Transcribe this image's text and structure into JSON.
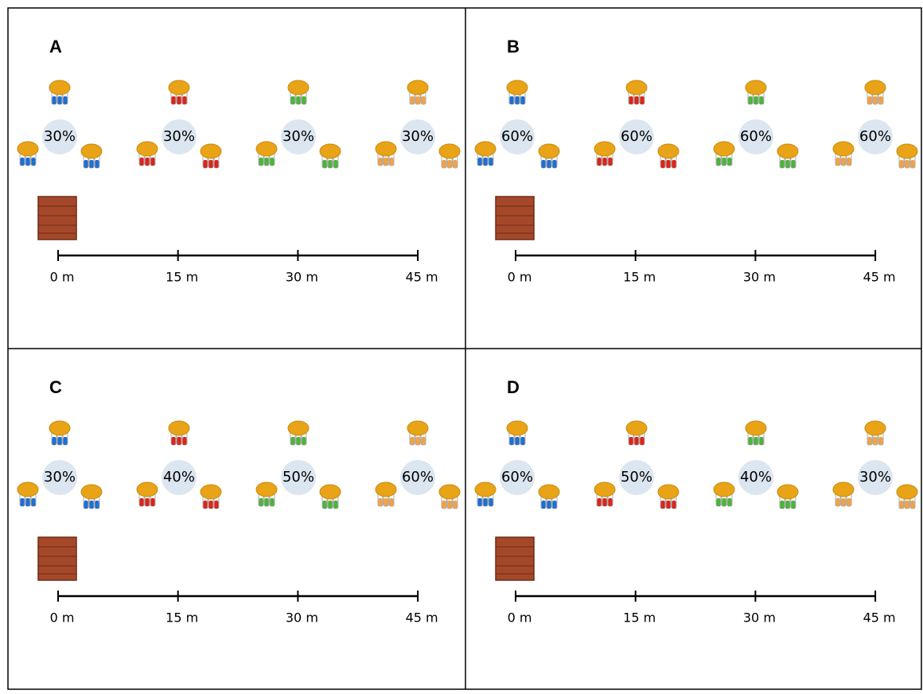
{
  "panels": [
    {
      "label": "A",
      "stations": [
        {
          "percent": "30%",
          "color": "#1f6fd1"
        },
        {
          "percent": "30%",
          "color": "#d9261c"
        },
        {
          "percent": "30%",
          "color": "#4db33d"
        },
        {
          "percent": "30%",
          "color": "#f0a24a"
        }
      ],
      "scale": [
        "0 m",
        "15 m",
        "30 m",
        "45 m"
      ]
    },
    {
      "label": "B",
      "stations": [
        {
          "percent": "60%",
          "color": "#1f6fd1"
        },
        {
          "percent": "60%",
          "color": "#d9261c"
        },
        {
          "percent": "60%",
          "color": "#4db33d"
        },
        {
          "percent": "60%",
          "color": "#f0a24a"
        }
      ],
      "scale": [
        "0 m",
        "15 m",
        "30 m",
        "45 m"
      ]
    },
    {
      "label": "C",
      "stations": [
        {
          "percent": "30%",
          "color": "#1f6fd1"
        },
        {
          "percent": "40%",
          "color": "#d9261c"
        },
        {
          "percent": "50%",
          "color": "#4db33d"
        },
        {
          "percent": "60%",
          "color": "#f0a24a"
        }
      ],
      "scale": [
        "0 m",
        "15 m",
        "30 m",
        "45 m"
      ]
    },
    {
      "label": "D",
      "stations": [
        {
          "percent": "60%",
          "color": "#1f6fd1"
        },
        {
          "percent": "50%",
          "color": "#d9261c"
        },
        {
          "percent": "40%",
          "color": "#4db33d"
        },
        {
          "percent": "30%",
          "color": "#f0a24a"
        }
      ],
      "scale": [
        "0 m",
        "15 m",
        "30 m",
        "45 m"
      ]
    }
  ]
}
